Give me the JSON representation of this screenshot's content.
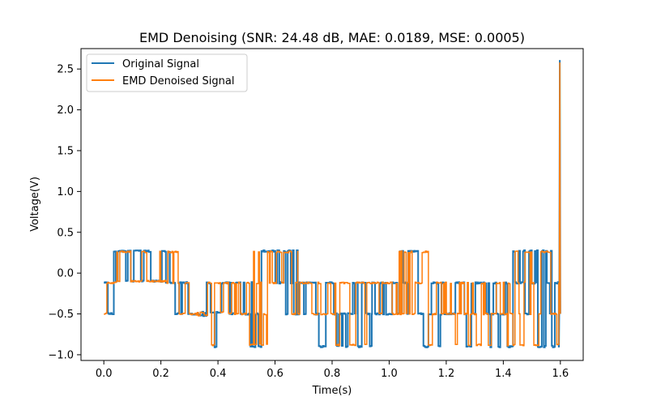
{
  "chart_data": {
    "type": "line",
    "title": "EMD Denoising (SNR: 24.48 dB, MAE: 0.0189, MSE: 0.0005)",
    "xlabel": "Time(s)",
    "ylabel": "Voltage(V)",
    "xlim": [
      -0.08,
      1.68
    ],
    "ylim": [
      -1.07,
      2.75
    ],
    "xticks": [
      0.0,
      0.2,
      0.4,
      0.6,
      0.8,
      1.0,
      1.2,
      1.4,
      1.6
    ],
    "xtick_labels": [
      "0.0",
      "0.2",
      "0.4",
      "0.6",
      "0.8",
      "1.0",
      "1.2",
      "1.4",
      "1.6"
    ],
    "yticks": [
      -1.0,
      -0.5,
      0.0,
      0.5,
      1.0,
      1.5,
      2.0,
      2.5
    ],
    "ytick_labels": [
      "−1.0",
      "−0.5",
      "0.0",
      "0.5",
      "1.0",
      "1.5",
      "2.0",
      "2.5"
    ],
    "grid": false,
    "legend_position": "top-left",
    "series": [
      {
        "name": "Original Signal",
        "color": "#1f77b4",
        "segments": [
          {
            "start": 0.0,
            "end": 0.035,
            "levels": [
              -0.12,
              -0.5
            ]
          },
          {
            "start": 0.035,
            "end": 0.2,
            "levels": [
              -0.1,
              0.27
            ]
          },
          {
            "start": 0.2,
            "end": 0.25,
            "levels": [
              -0.12,
              0.27
            ]
          },
          {
            "start": 0.25,
            "end": 0.31,
            "levels": [
              -0.12,
              -0.5
            ]
          },
          {
            "start": 0.31,
            "end": 0.36,
            "levels": [
              -0.48,
              -0.52
            ]
          },
          {
            "start": 0.36,
            "end": 0.43,
            "levels": [
              -0.48,
              -0.9,
              -0.12
            ]
          },
          {
            "start": 0.43,
            "end": 0.5,
            "levels": [
              -0.12,
              -0.5
            ]
          },
          {
            "start": 0.5,
            "end": 0.58,
            "levels": [
              -0.12,
              0.27,
              -0.5,
              -0.9
            ]
          },
          {
            "start": 0.58,
            "end": 0.62,
            "levels": [
              -0.12,
              0.27
            ]
          },
          {
            "start": 0.62,
            "end": 0.68,
            "levels": [
              -0.12,
              0.27,
              -0.5
            ]
          },
          {
            "start": 0.68,
            "end": 0.75,
            "levels": [
              -0.12,
              -0.5
            ]
          },
          {
            "start": 0.75,
            "end": 0.94,
            "levels": [
              -0.12,
              -0.5,
              -0.9
            ]
          },
          {
            "start": 0.94,
            "end": 1.0,
            "levels": [
              -0.12,
              -0.5
            ]
          },
          {
            "start": 1.0,
            "end": 1.12,
            "levels": [
              -0.12,
              0.27,
              -0.5
            ]
          },
          {
            "start": 1.12,
            "end": 1.42,
            "levels": [
              -0.12,
              -0.5,
              -0.9
            ]
          },
          {
            "start": 1.42,
            "end": 1.5,
            "levels": [
              -0.12,
              0.27,
              -0.5,
              -0.9
            ]
          },
          {
            "start": 1.5,
            "end": 1.595,
            "levels": [
              -0.12,
              0.27,
              -0.5,
              -0.9
            ]
          }
        ],
        "spike": {
          "x": 1.598,
          "y": 2.61
        }
      },
      {
        "name": "EMD Denoised Signal",
        "color": "#ff7f0e",
        "segments": [
          {
            "start": 0.0,
            "end": 0.035,
            "levels": [
              -0.12,
              -0.5
            ]
          },
          {
            "start": 0.035,
            "end": 0.2,
            "levels": [
              -0.1,
              0.26
            ]
          },
          {
            "start": 0.2,
            "end": 0.25,
            "levels": [
              -0.12,
              0.26
            ]
          },
          {
            "start": 0.25,
            "end": 0.31,
            "levels": [
              -0.12,
              -0.5
            ]
          },
          {
            "start": 0.31,
            "end": 0.36,
            "levels": [
              -0.48,
              -0.52
            ]
          },
          {
            "start": 0.36,
            "end": 0.43,
            "levels": [
              -0.48,
              -0.88,
              -0.12
            ]
          },
          {
            "start": 0.43,
            "end": 0.5,
            "levels": [
              -0.12,
              -0.5
            ]
          },
          {
            "start": 0.5,
            "end": 0.58,
            "levels": [
              -0.12,
              0.26,
              -0.5,
              -0.88
            ]
          },
          {
            "start": 0.58,
            "end": 0.62,
            "levels": [
              -0.12,
              0.26
            ]
          },
          {
            "start": 0.62,
            "end": 0.68,
            "levels": [
              -0.12,
              0.26,
              -0.5
            ]
          },
          {
            "start": 0.68,
            "end": 0.75,
            "levels": [
              -0.12,
              -0.5
            ]
          },
          {
            "start": 0.75,
            "end": 0.94,
            "levels": [
              -0.12,
              -0.5,
              -0.88
            ]
          },
          {
            "start": 0.94,
            "end": 1.0,
            "levels": [
              -0.12,
              -0.5
            ]
          },
          {
            "start": 1.0,
            "end": 1.12,
            "levels": [
              -0.12,
              0.26,
              -0.5
            ]
          },
          {
            "start": 1.12,
            "end": 1.42,
            "levels": [
              -0.12,
              -0.5,
              -0.88
            ]
          },
          {
            "start": 1.42,
            "end": 1.5,
            "levels": [
              -0.12,
              0.26,
              -0.5,
              -0.88
            ]
          },
          {
            "start": 1.5,
            "end": 1.595,
            "levels": [
              -0.12,
              0.26,
              -0.5,
              -0.88
            ]
          }
        ],
        "spike": {
          "x": 1.598,
          "y": 2.58
        }
      }
    ]
  }
}
